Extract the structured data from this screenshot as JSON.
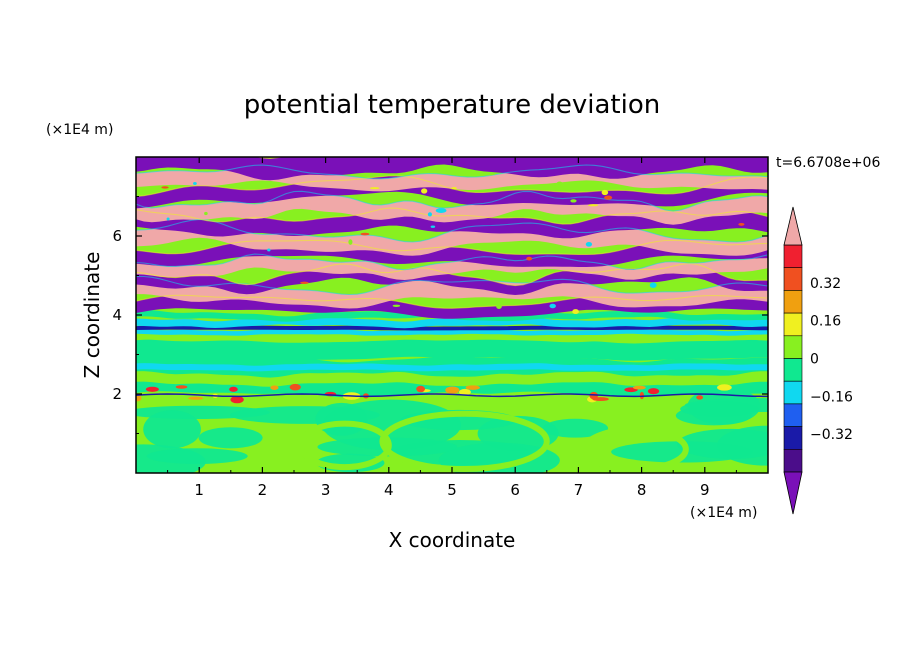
{
  "chart_data": {
    "type": "heatmap",
    "title": "potential temperature deviation",
    "xlabel": "X coordinate",
    "ylabel": "Z coordinate",
    "x_unit": "(×1E4 m)",
    "y_unit": "(×1E4 m)",
    "time_label": "t=6.6708e+06",
    "xlim": [
      0,
      10
    ],
    "ylim": [
      0,
      8
    ],
    "x_ticks": [
      "1",
      "2",
      "3",
      "4",
      "5",
      "6",
      "7",
      "8",
      "9"
    ],
    "y_ticks": [
      "2",
      "4",
      "6"
    ],
    "x_tick_values": [
      1,
      2,
      3,
      4,
      5,
      6,
      7,
      8,
      9
    ],
    "y_tick_values": [
      2,
      4,
      6
    ],
    "colorbar": {
      "levels": [
        -0.48,
        -0.4,
        -0.32,
        -0.24,
        -0.16,
        -0.08,
        0,
        0.08,
        0.16,
        0.24,
        0.32,
        0.4,
        0.48
      ],
      "labels": [
        "0.32",
        "0.16",
        "0",
        "−0.16",
        "−0.32"
      ],
      "label_values": [
        0.32,
        0.16,
        0,
        -0.16,
        -0.32
      ],
      "colors": [
        "#4b0d8a",
        "#1a1aa8",
        "#1f5ff0",
        "#10d8f0",
        "#10e890",
        "#88f020",
        "#f0f020",
        "#f0a010",
        "#f05020",
        "#f02030"
      ],
      "under_color": "#7a10b8",
      "over_color": "#f0a8a8"
    },
    "band_sequence_note": "layered structure: alternating purple/pink bands above z=4, cyan/blue stripes near z=3.5-4, green/lime below z=3 with yellow-red perturbations near z=2"
  }
}
